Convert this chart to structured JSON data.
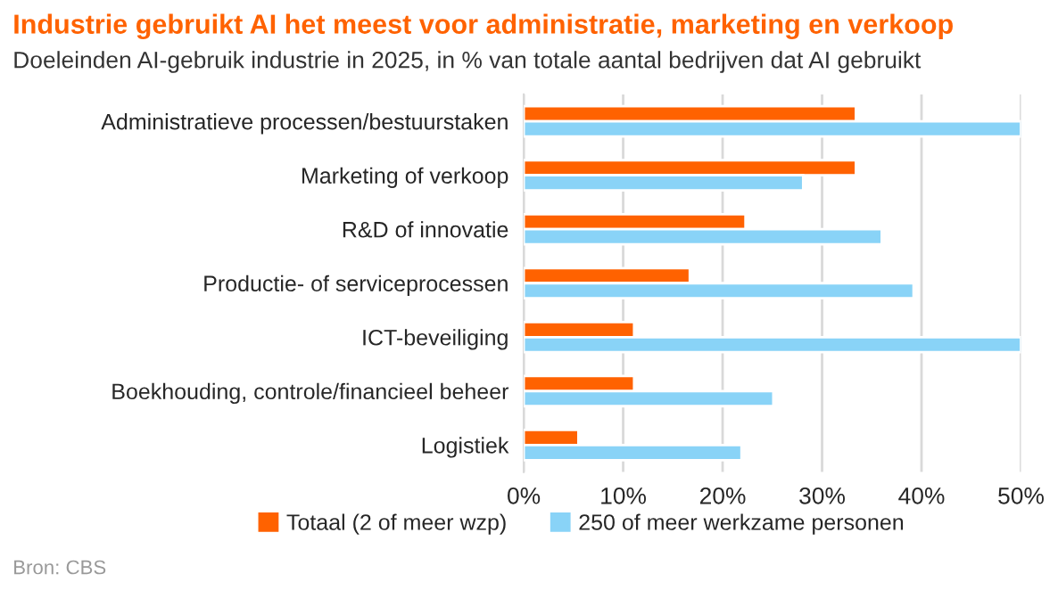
{
  "chart_data": {
    "type": "bar",
    "orientation": "horizontal",
    "title": "Industrie gebruikt AI het meest voor administratie, marketing en verkoop",
    "subtitle": "Doeleinden AI-gebruik industrie in 2025, in % van totale aantal bedrijven dat AI gebruikt",
    "categories": [
      "Administratieve processen/bestuurstaken",
      "Marketing of verkoop",
      "R&D of innovatie",
      "Productie- of serviceprocessen",
      "ICT-beveiliging",
      "Boekhouding, controle/financieel beheer",
      "Logistiek"
    ],
    "series": [
      {
        "name": "Totaal (2 of meer wzp)",
        "color": "#ff6200",
        "values": [
          33.4,
          33.4,
          22.3,
          16.7,
          11.1,
          11.1,
          5.5
        ]
      },
      {
        "name": "250 of meer werkzame personen",
        "color": "#89d3f7",
        "values": [
          50,
          28.1,
          36,
          39.2,
          50,
          25.1,
          21.9
        ]
      }
    ],
    "xlim": [
      0,
      50
    ],
    "xticks": [
      {
        "value": 0,
        "label": "0%"
      },
      {
        "value": 10,
        "label": "10%"
      },
      {
        "value": 20,
        "label": "20%"
      },
      {
        "value": 30,
        "label": "30%"
      },
      {
        "value": 40,
        "label": "40%"
      },
      {
        "value": 50,
        "label": "50%"
      }
    ],
    "grid": "x",
    "legend": "bottom",
    "annotations": [
      "Bron: CBS"
    ]
  }
}
